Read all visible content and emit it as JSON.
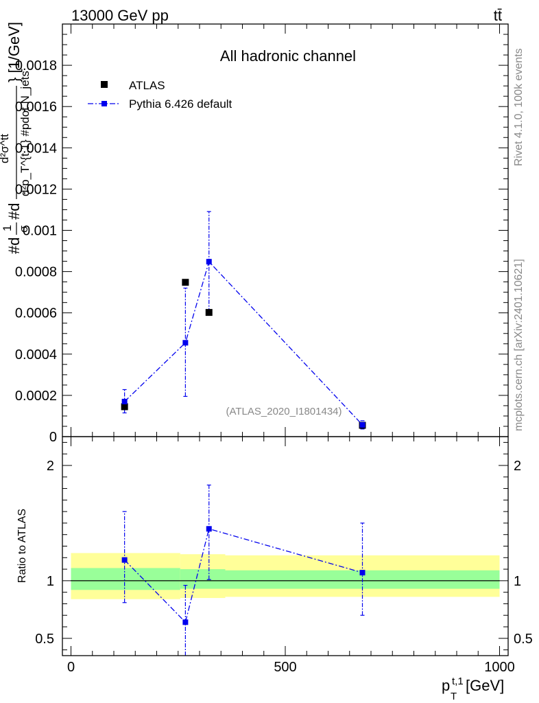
{
  "header": {
    "energy_label": "13000 GeV pp",
    "process_label": "tt̄"
  },
  "side_text": {
    "rivet": "Rivet 4.1.0,  100k events",
    "source": "mcplots.cern.ch [arXiv:2401.10621]"
  },
  "colors": {
    "data": "#000000",
    "mc": "#0000ee",
    "band_inner": "#99ff99",
    "band_outer": "#ffff99"
  },
  "chart_data": [
    {
      "type": "scatter",
      "title": "All hadronic channel",
      "watermark": "(ATLAS_2020_I1801434)",
      "ylabel": "#d^{2}σ^{tt̄} / d^{2}p_T^{t,1} #d... [1/GeV] (1/σ #pdot N_jets)",
      "ylabel_parts": {
        "prefix": "#d",
        "frac1_num": "1",
        "frac1_den": "σ",
        "mid": "#d",
        "frac2_num": "d²σ^tt̄",
        "frac2_den": "d²p_T^{t,1} #pdot N_jets",
        "unit": "} [1/GeV]"
      },
      "xlim": [
        -20,
        1020
      ],
      "ylim": [
        0,
        0.002
      ],
      "y_ticks": [
        "0",
        "0.0002",
        "0.0004",
        "0.0006",
        "0.0008",
        "0.001",
        "0.0012",
        "0.0014",
        "0.0016",
        "0.0018"
      ],
      "legend": {
        "position": "top-left",
        "entries": [
          "ATLAS",
          "Pythia 6.426 default"
        ]
      },
      "series": [
        {
          "name": "ATLAS",
          "style": "square-marker",
          "points": [
            {
              "x": 125,
              "y": 0.000145
            },
            {
              "x": 267,
              "y": 0.000748
            },
            {
              "x": 322,
              "y": 0.000602
            },
            {
              "x": 680,
              "y": 5.5e-05
            }
          ]
        },
        {
          "name": "Pythia 6.426 default",
          "style": "dash-dot-line",
          "points": [
            {
              "x": 125,
              "y": 0.00017,
              "err_lo": 5.5e-05,
              "err_hi": 5.8e-05
            },
            {
              "x": 267,
              "y": 0.000455,
              "err_lo": 0.00026,
              "err_hi": 0.000265
            },
            {
              "x": 322,
              "y": 0.000848,
              "err_lo": 0.000245,
              "err_hi": 0.000243
            },
            {
              "x": 680,
              "y": 5.7e-05,
              "err_lo": 2e-05,
              "err_hi": 2e-05
            }
          ]
        }
      ]
    },
    {
      "type": "scatter",
      "title": "",
      "ylabel": "Ratio to ATLAS",
      "xlabel": "p_T^{t,1} [GeV]",
      "xlabel_parts": {
        "main": "p",
        "sub": "T",
        "sup": "t,1",
        "unit": " [GeV]"
      },
      "xlim": [
        -20,
        1020
      ],
      "ylim": [
        0.35,
        2.25
      ],
      "x_ticks": [
        "0",
        "500",
        "1000"
      ],
      "y_ticks": [
        "0.5",
        "1",
        "2"
      ],
      "reference_line": 1,
      "bands": [
        {
          "x0": 0,
          "x1": 255,
          "inner": [
            0.92,
            1.11
          ],
          "outer": [
            0.84,
            1.24
          ]
        },
        {
          "x0": 255,
          "x1": 360,
          "inner": [
            0.93,
            1.1
          ],
          "outer": [
            0.85,
            1.23
          ]
        },
        {
          "x0": 360,
          "x1": 1000,
          "inner": [
            0.93,
            1.09
          ],
          "outer": [
            0.86,
            1.22
          ]
        }
      ],
      "series": [
        {
          "name": "Pythia 6.426 default",
          "points": [
            {
              "x": 125,
              "y": 1.18,
              "err_lo": 0.37,
              "err_hi": 0.42
            },
            {
              "x": 267,
              "y": 0.64,
              "err_lo": 0.33,
              "err_hi": 0.32
            },
            {
              "x": 322,
              "y": 1.45,
              "err_lo": 0.44,
              "err_hi": 0.38
            },
            {
              "x": 680,
              "y": 1.07,
              "err_lo": 0.37,
              "err_hi": 0.43
            }
          ]
        }
      ]
    }
  ]
}
